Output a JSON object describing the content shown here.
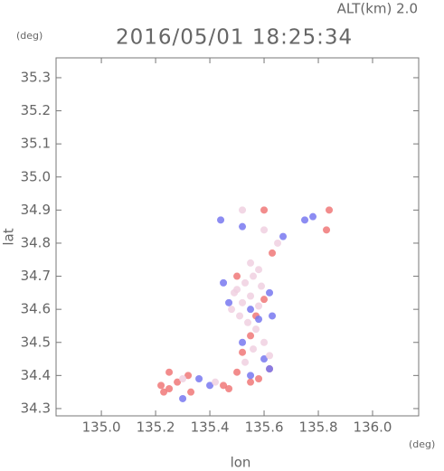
{
  "chart_data": {
    "type": "scatter",
    "title": "2016/05/01 18:25:34",
    "subtitle": "ALT(km) 2.0",
    "x_label": "lon",
    "x_unit": "(deg)",
    "y_label": "lat",
    "y_unit": "(deg)",
    "xlim": [
      134.833,
      136.17
    ],
    "ylim": [
      34.278,
      35.36
    ],
    "xticks": [
      {
        "value": 135.0,
        "label": "135.0"
      },
      135.2,
      135.4,
      135.6,
      135.8,
      {
        "value": 136.0,
        "label": "136.0"
      }
    ],
    "yticks": [
      34.3,
      34.4,
      34.5,
      34.6,
      34.7,
      34.8,
      34.9,
      {
        "value": 35.0,
        "label": "35.0"
      },
      35.1,
      35.2,
      35.3
    ],
    "series": [
      {
        "color": "#f07878",
        "x": [
          135.22,
          135.25,
          135.28,
          135.33,
          135.45,
          135.55,
          135.58,
          135.5,
          135.32,
          135.6,
          135.57,
          135.5,
          135.55,
          135.52,
          135.63,
          135.83,
          135.84,
          135.6,
          135.25,
          135.62,
          135.23,
          135.47
        ],
        "values": [
          34.37,
          34.36,
          34.38,
          34.35,
          34.37,
          34.38,
          34.39,
          34.41,
          34.4,
          34.63,
          34.58,
          34.7,
          34.52,
          34.47,
          34.77,
          34.84,
          34.9,
          34.9,
          34.41,
          34.42,
          34.35,
          34.36
        ]
      },
      {
        "color": "#7878f0",
        "x": [
          135.55,
          135.47,
          135.45,
          135.62,
          135.6,
          135.62,
          135.67,
          135.75,
          135.52,
          135.55,
          135.4,
          135.58,
          135.63,
          135.3,
          135.52,
          135.36,
          135.44,
          135.78
        ],
        "values": [
          34.6,
          34.62,
          34.68,
          34.65,
          34.45,
          34.42,
          34.82,
          34.87,
          34.5,
          34.4,
          34.37,
          34.57,
          34.58,
          34.33,
          34.85,
          34.39,
          34.87,
          34.88
        ]
      },
      {
        "color": "#f0d0e0",
        "x": [
          135.5,
          135.53,
          135.56,
          135.59,
          135.52,
          135.55,
          135.58,
          135.54,
          135.57,
          135.51,
          135.6,
          135.49,
          135.56,
          135.53,
          135.62,
          135.48,
          135.58,
          135.55,
          135.3,
          135.42,
          135.65,
          135.6,
          135.52
        ],
        "values": [
          34.66,
          34.68,
          34.7,
          34.67,
          34.62,
          34.64,
          34.61,
          34.56,
          34.54,
          34.58,
          34.5,
          34.65,
          34.48,
          34.44,
          34.46,
          34.6,
          34.72,
          34.74,
          34.39,
          34.38,
          34.8,
          34.84,
          34.9
        ]
      }
    ]
  }
}
